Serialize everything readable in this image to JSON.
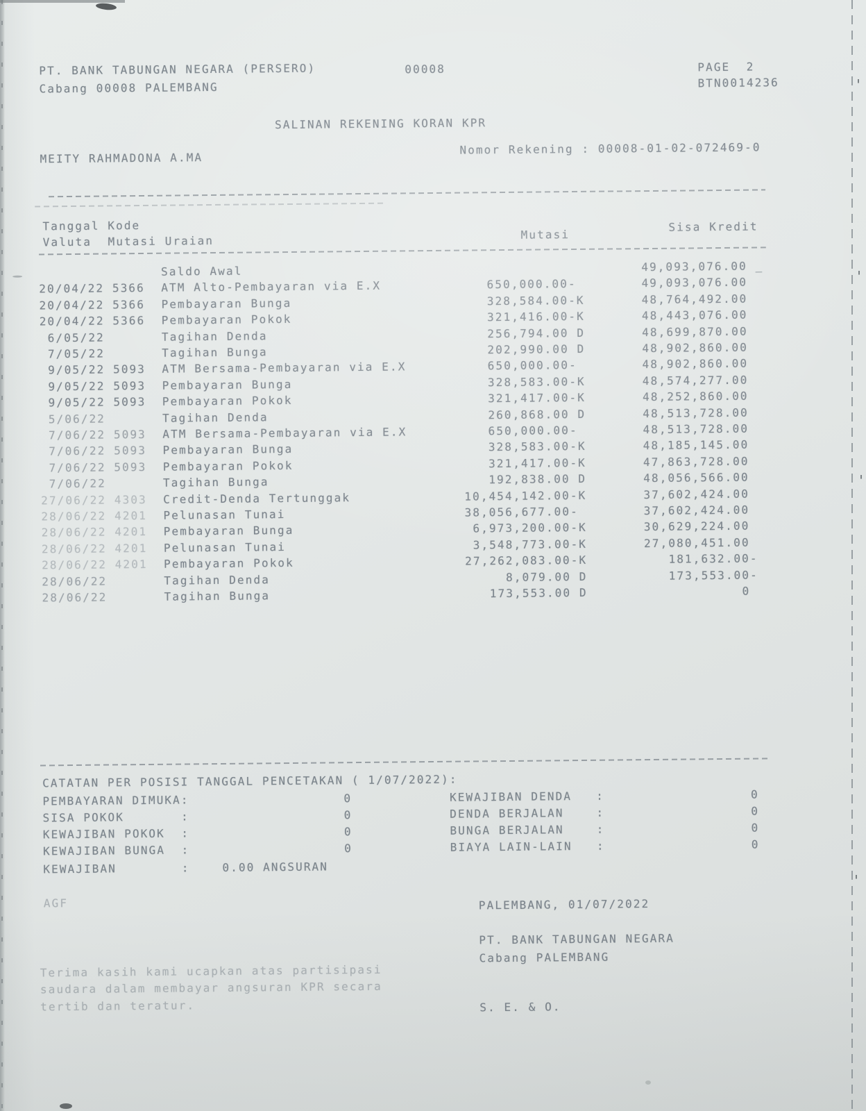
{
  "header": {
    "bank_name": "PT. BANK TABUNGAN NEGARA (PERSERO)",
    "branch_line": "Cabang 00008 PALEMBANG",
    "branch_code": "00008",
    "page_label": "PAGE  2",
    "doc_code": "BTN0014236",
    "title": "SALINAN REKENING KORAN KPR",
    "customer_name": "MEITY RAHMADONA A.MA",
    "account_label": "Nomor Rekening : 00008-01-02-072469-0"
  },
  "table": {
    "header": {
      "line1_left": "Tanggal Kode",
      "line2_left": "Valuta  Mutasi Uraian",
      "mutasi": "Mutasi",
      "sisa": "Sisa Kredit"
    },
    "rows": [
      {
        "d": "",
        "c": "",
        "u": "Saldo Awal",
        "m": "",
        "ms": "",
        "s": "49,093,076.00",
        "ss": " _",
        "f": 0
      },
      {
        "d": "20/04/22",
        "c": "5366",
        "u": "ATM Alto-Pembayaran via E.X",
        "m": "650,000.00",
        "ms": "-",
        "s": "49,093,076.00",
        "ss": "",
        "f": 0
      },
      {
        "d": "20/04/22",
        "c": "5366",
        "u": "Pembayaran Bunga",
        "m": "328,584.00",
        "ms": "-K",
        "s": "48,764,492.00",
        "ss": "",
        "f": 0
      },
      {
        "d": "20/04/22",
        "c": "5366",
        "u": "Pembayaran Pokok",
        "m": "321,416.00",
        "ms": "-K",
        "s": "48,443,076.00",
        "ss": "",
        "f": 0
      },
      {
        "d": "6/05/22",
        "c": "",
        "u": "Tagihan Denda",
        "m": "256,794.00",
        "ms": " D",
        "s": "48,699,870.00",
        "ss": "",
        "f": 0
      },
      {
        "d": "7/05/22",
        "c": "",
        "u": "Tagihan Bunga",
        "m": "202,990.00",
        "ms": " D",
        "s": "48,902,860.00",
        "ss": "",
        "f": 0
      },
      {
        "d": "9/05/22",
        "c": "5093",
        "u": "ATM Bersama-Pembayaran via E.X",
        "m": "650,000.00",
        "ms": "-",
        "s": "48,902,860.00",
        "ss": "",
        "f": 0
      },
      {
        "d": "9/05/22",
        "c": "5093",
        "u": "Pembayaran Bunga",
        "m": "328,583.00",
        "ms": "-K",
        "s": "48,574,277.00",
        "ss": "",
        "f": 0
      },
      {
        "d": "9/05/22",
        "c": "5093",
        "u": "Pembayaran Pokok",
        "m": "321,417.00",
        "ms": "-K",
        "s": "48,252,860.00",
        "ss": "",
        "f": 0
      },
      {
        "d": "5/06/22",
        "c": "",
        "u": "Tagihan Denda",
        "m": "260,868.00",
        "ms": " D",
        "s": "48,513,728.00",
        "ss": "",
        "f": 1
      },
      {
        "d": "7/06/22",
        "c": "5093",
        "u": "ATM Bersama-Pembayaran via E.X",
        "m": "650,000.00",
        "ms": "-",
        "s": "48,513,728.00",
        "ss": "",
        "f": 1
      },
      {
        "d": "7/06/22",
        "c": "5093",
        "u": "Pembayaran Bunga",
        "m": "328,583.00",
        "ms": "-K",
        "s": "48,185,145.00",
        "ss": "",
        "f": 1
      },
      {
        "d": "7/06/22",
        "c": "5093",
        "u": "Pembayaran Pokok",
        "m": "321,417.00",
        "ms": "-K",
        "s": "47,863,728.00",
        "ss": "",
        "f": 1
      },
      {
        "d": "7/06/22",
        "c": "",
        "u": "Tagihan Bunga",
        "m": "192,838.00",
        "ms": " D",
        "s": "48,056,566.00",
        "ss": "",
        "f": 1
      },
      {
        "d": "27/06/22",
        "c": "4303",
        "u": "Credit-Denda Tertunggak",
        "m": "10,454,142.00",
        "ms": "-K",
        "s": "37,602,424.00",
        "ss": "",
        "f": 2
      },
      {
        "d": "28/06/22",
        "c": "4201",
        "u": "Pelunasan Tunai",
        "m": "38,056,677.00",
        "ms": "-",
        "s": "37,602,424.00",
        "ss": "",
        "f": 2
      },
      {
        "d": "28/06/22",
        "c": "4201",
        "u": "Pembayaran Bunga",
        "m": "6,973,200.00",
        "ms": "-K",
        "s": "30,629,224.00",
        "ss": "",
        "f": 2
      },
      {
        "d": "28/06/22",
        "c": "4201",
        "u": "Pelunasan Tunai",
        "m": "3,548,773.00",
        "ms": "-K",
        "s": "27,080,451.00",
        "ss": "",
        "f": 2
      },
      {
        "d": "28/06/22",
        "c": "4201",
        "u": "Pembayaran Pokok",
        "m": "27,262,083.00",
        "ms": "-K",
        "s": "181,632.00",
        "ss": "-",
        "f": 2
      },
      {
        "d": "28/06/22",
        "c": "",
        "u": "Tagihan Denda",
        "m": "8,079.00",
        "ms": " D",
        "s": "173,553.00",
        "ss": "-",
        "f": 1
      },
      {
        "d": "28/06/22",
        "c": "",
        "u": "Tagihan Bunga",
        "m": "173,553.00",
        "ms": " D",
        "s": "0",
        "ss": "",
        "f": 1
      }
    ]
  },
  "catatan": {
    "title_line": "CATATAN PER POSISI TANGGAL PENCETAKAN ( 1/07/2022):",
    "rows": [
      {
        "left_label": "PEMBAYARAN DIMUKA",
        "left_value": "0",
        "right_label": "KEWAJIBAN DENDA",
        "right_value": "0"
      },
      {
        "left_label": "SISA POKOK",
        "left_value": "0",
        "right_label": "DENDA BERJALAN",
        "right_value": "0"
      },
      {
        "left_label": "KEWAJIBAN POKOK",
        "left_value": "0",
        "right_label": "BUNGA BERJALAN",
        "right_value": "0"
      },
      {
        "left_label": "KEWAJIBAN BUNGA",
        "left_value": "0",
        "right_label": "BIAYA LAIN-LAIN",
        "right_value": "0"
      }
    ],
    "kewajiban_label": "KEWAJIBAN",
    "kewajiban_value": "0.00 ANGSURAN"
  },
  "footer": {
    "initials": "AGF",
    "place_date": "PALEMBANG, 01/07/2022",
    "bank_name": "PT. BANK TABUNGAN NEGARA",
    "branch": "Cabang PALEMBANG",
    "seo": "S. E. & O.",
    "thanks_lines": [
      "Terima kasih kami ucapkan atas partisipasi",
      "saudara dalam membayar angsuran KPR secara",
      "tertib dan teratur."
    ]
  }
}
